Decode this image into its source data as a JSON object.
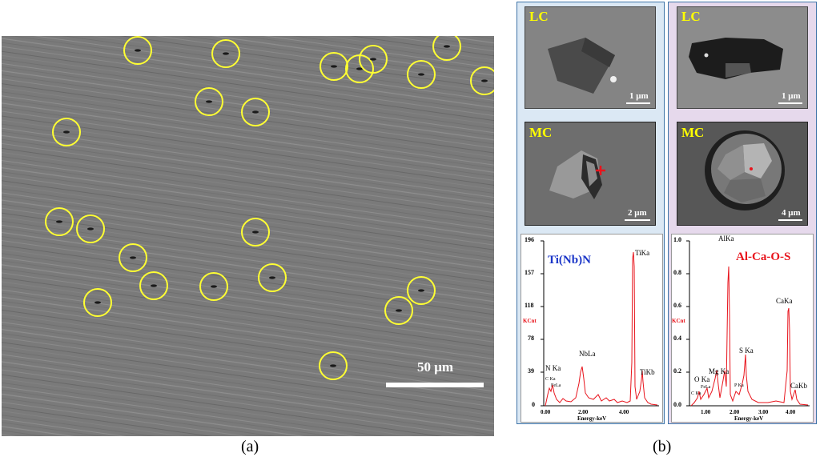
{
  "panel_a": {
    "scale_label": "50 μm",
    "caption": "(a)"
  },
  "panel_b": {
    "caption": "(b)",
    "left": {
      "lc_label": "LC",
      "lc_scale": "1 μm",
      "mc_label": "MC",
      "mc_scale": "2 μm",
      "spectrum": {
        "title": "Ti(Nb)N",
        "y_ticks": [
          "196",
          "157",
          "118",
          "78",
          "39",
          "0"
        ],
        "y_unit": "KCnt",
        "x_ticks": [
          "0.00",
          "2.00",
          "4.00"
        ],
        "x_label": "Energy-keV",
        "peaks": [
          "TiKa",
          "NbLa",
          "N Ka",
          "C Ka",
          "FeLa",
          "TiKb"
        ]
      }
    },
    "right": {
      "lc_label": "LC",
      "lc_scale": "1 μm",
      "mc_label": "MC",
      "mc_scale": "4 μm",
      "spectrum": {
        "title": "Al-Ca-O-S",
        "y_ticks": [
          "1.0",
          "0.8",
          "0.6",
          "0.4",
          "0.2",
          "0.0"
        ],
        "y_unit": "KCnt",
        "x_ticks": [
          "1.00",
          "2.00",
          "3.00",
          "4.00"
        ],
        "x_label": "Energy-keV",
        "peaks": [
          "AlKa",
          "CaKa",
          "S Ka",
          "Mg Ka",
          "O Ka",
          "FeLa",
          "C Ka",
          "P Ka",
          "CaKb"
        ]
      }
    }
  },
  "colors": {
    "circle": "#ffff33",
    "label_yellow": "#ffff00",
    "frame_blue": "#3f74a8",
    "spectrum_red": "#e8141c",
    "title_blue": "#1a35c8",
    "title_red": "#e8141c"
  }
}
